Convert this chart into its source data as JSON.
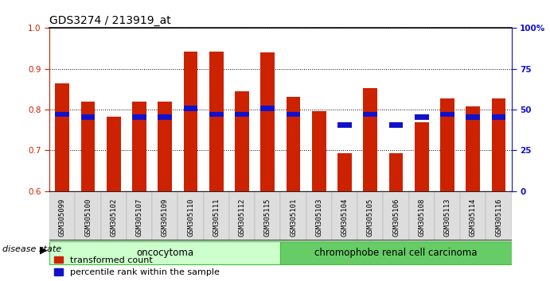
{
  "title": "GDS3274 / 213919_at",
  "samples": [
    "GSM305099",
    "GSM305100",
    "GSM305102",
    "GSM305107",
    "GSM305109",
    "GSM305110",
    "GSM305111",
    "GSM305112",
    "GSM305115",
    "GSM305101",
    "GSM305103",
    "GSM305104",
    "GSM305105",
    "GSM305106",
    "GSM305108",
    "GSM305113",
    "GSM305114",
    "GSM305116"
  ],
  "red_values": [
    0.865,
    0.82,
    0.782,
    0.82,
    0.82,
    0.942,
    0.942,
    0.845,
    0.94,
    0.832,
    0.797,
    0.693,
    0.852,
    0.693,
    0.768,
    0.828,
    0.808,
    0.828
  ],
  "blue_values": [
    0.782,
    0.775,
    null,
    0.775,
    0.775,
    0.797,
    0.782,
    0.782,
    0.797,
    0.782,
    null,
    0.756,
    0.782,
    0.756,
    0.775,
    0.782,
    0.775,
    0.775
  ],
  "onco_count": 9,
  "chrom_count": 9,
  "onco_color": "#ccffcc",
  "chrom_color": "#66cc66",
  "ylim": [
    0.6,
    1.0
  ],
  "y_ticks_left": [
    0.6,
    0.7,
    0.8,
    0.9,
    1.0
  ],
  "y_ticks_right": [
    0,
    25,
    50,
    75,
    100
  ],
  "bar_color": "#cc2200",
  "percentile_color": "#1111cc",
  "background_color": "#ffffff",
  "bar_width": 0.55,
  "title_fontsize": 10,
  "tick_fontsize": 7.5,
  "label_fontsize": 8,
  "legend_fontsize": 8
}
